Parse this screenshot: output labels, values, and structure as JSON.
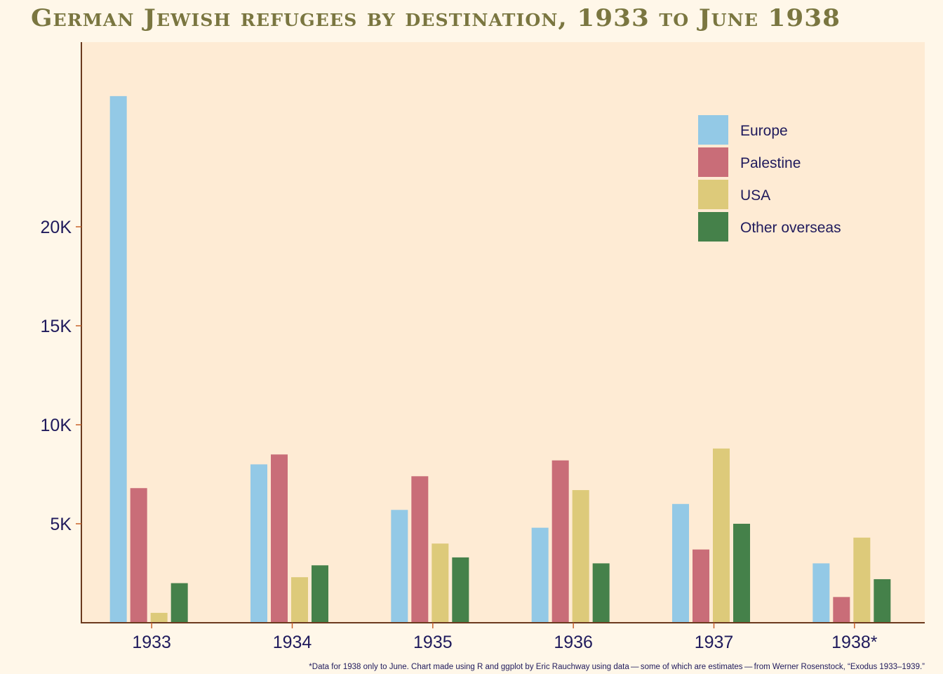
{
  "chart_data": {
    "type": "bar",
    "title": "German Jewish refugees by destination, 1933 to June 1938",
    "xlabel": "",
    "ylabel": "",
    "categories": [
      "1933",
      "1934",
      "1935",
      "1936",
      "1937",
      "1938*"
    ],
    "yticks": [
      5000,
      10000,
      15000,
      20000
    ],
    "ytick_labels": [
      "5K",
      "10K",
      "15K",
      "20K"
    ],
    "ylim": [
      0,
      28500
    ],
    "grid": false,
    "legend_position": "top-right",
    "series": [
      {
        "name": "Europe",
        "color": "#93c9e6",
        "values": [
          26600,
          8000,
          5700,
          4800,
          6000,
          3000
        ]
      },
      {
        "name": "Palestine",
        "color": "#c96d78",
        "values": [
          6800,
          8500,
          7400,
          8200,
          3700,
          1300
        ]
      },
      {
        "name": "USA",
        "color": "#ddca7a",
        "values": [
          500,
          2300,
          4000,
          6700,
          8800,
          4300
        ]
      },
      {
        "name": "Other overseas",
        "color": "#45814a",
        "values": [
          2000,
          2900,
          3300,
          3000,
          5000,
          2200
        ]
      }
    ],
    "caption": "*Data for 1938 only to June. Chart made using R and ggplot by Eric Rauchway using data — some of which are estimates — from Werner Rosenstock, “Exodus 1933–1939.”"
  },
  "title_display": "German Jewish refugees by destination, 1933 to June 1938",
  "colors": {
    "page_bg": "#fff7e9",
    "panel_bg": "#feebd4",
    "axis": "#6b3a1f",
    "tick": "#c8622a",
    "text": "#1f1a5c",
    "title": "#7a7640"
  }
}
